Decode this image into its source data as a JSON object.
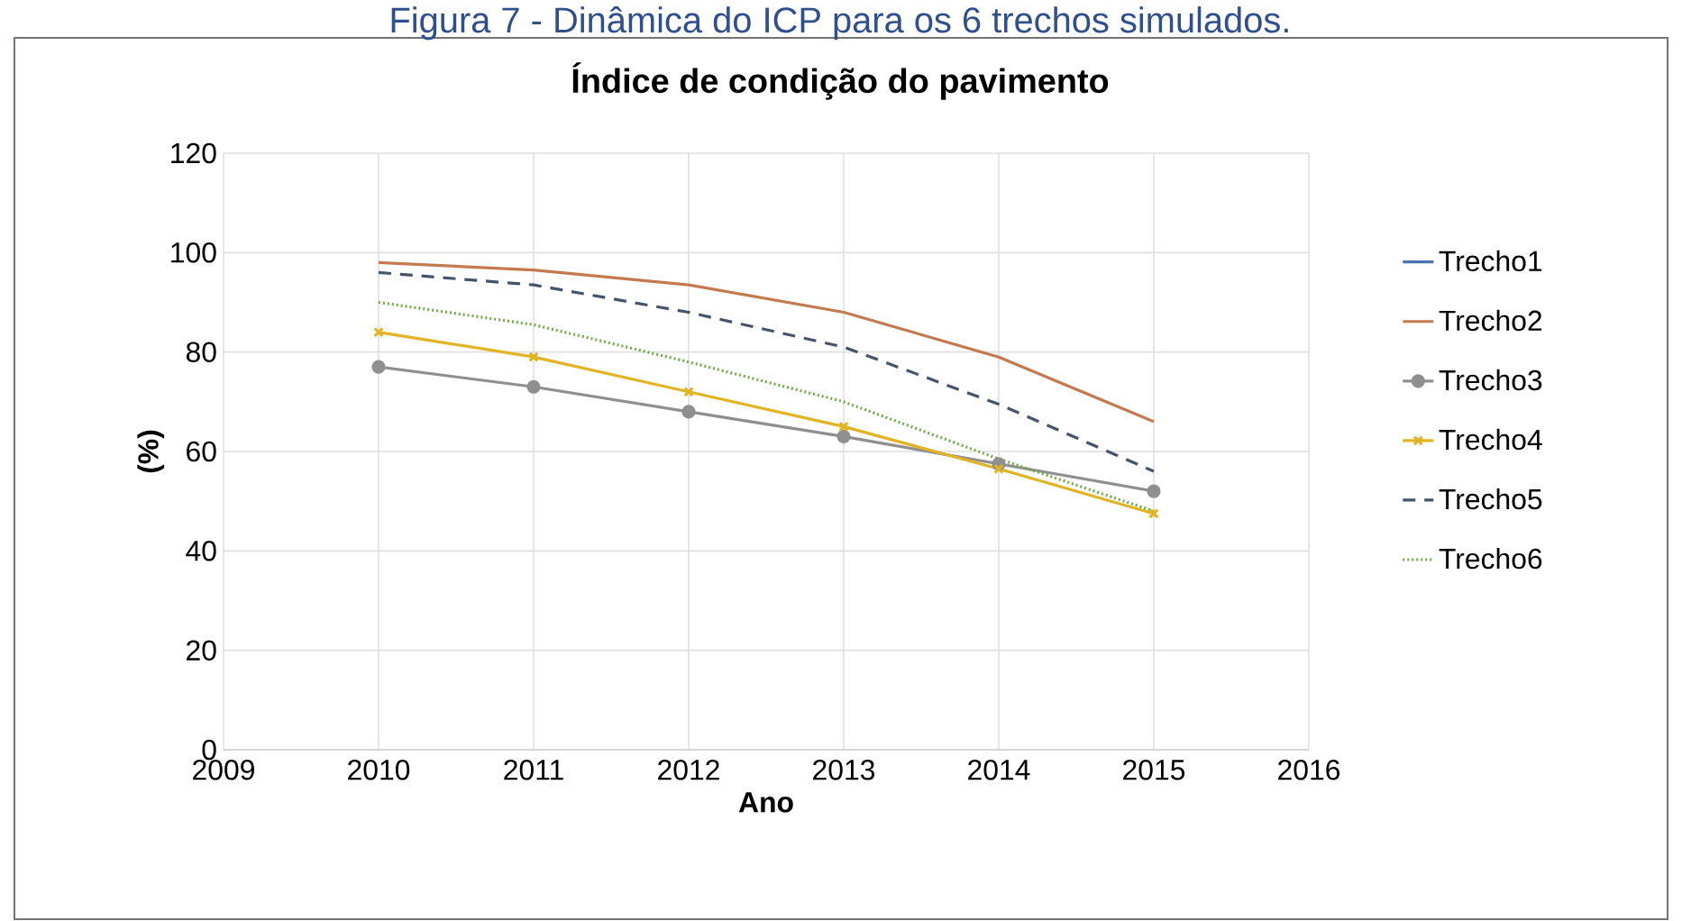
{
  "chart_data": {
    "type": "line",
    "title": "Índice de condição do pavimento",
    "annotations": [
      "Figura 7 - Dinâmica do ICP para os 6 trechos simulados."
    ],
    "xlabel": "Ano",
    "ylabel": "(%)",
    "x": [
      2010,
      2011,
      2012,
      2013,
      2014,
      2015
    ],
    "series": [
      {
        "name": "Trecho1",
        "color": "#4a73b0",
        "values": [
          null,
          null,
          null,
          null,
          null,
          null
        ]
      },
      {
        "name": "Trecho2",
        "color": "#c47a4e",
        "values": [
          98,
          96.5,
          93.5,
          88,
          79,
          66
        ]
      },
      {
        "name": "Trecho3",
        "color": "#8f8f8f",
        "values": [
          77,
          73,
          68,
          63,
          57.5,
          52
        ],
        "marker": "circle"
      },
      {
        "name": "Trecho4",
        "color": "#e2b424",
        "values": [
          84,
          79,
          72,
          65,
          56.5,
          47.5
        ],
        "marker": "cross"
      },
      {
        "name": "Trecho5",
        "color": "#44546a",
        "values": [
          96,
          93.5,
          88,
          81,
          69.5,
          56
        ],
        "line_style": "dashed"
      },
      {
        "name": "Trecho6",
        "color": "#70ad47",
        "values": [
          90,
          85.5,
          78,
          70,
          58.5,
          48
        ],
        "line_style": "dotted"
      }
    ],
    "xlim": [
      2009,
      2016
    ],
    "xticks": [
      2009,
      2010,
      2011,
      2012,
      2013,
      2014,
      2015,
      2016
    ],
    "ylim": [
      0,
      120
    ],
    "yticks": [
      0,
      20,
      40,
      60,
      80,
      100,
      120
    ],
    "grid": true,
    "legend": "right"
  }
}
